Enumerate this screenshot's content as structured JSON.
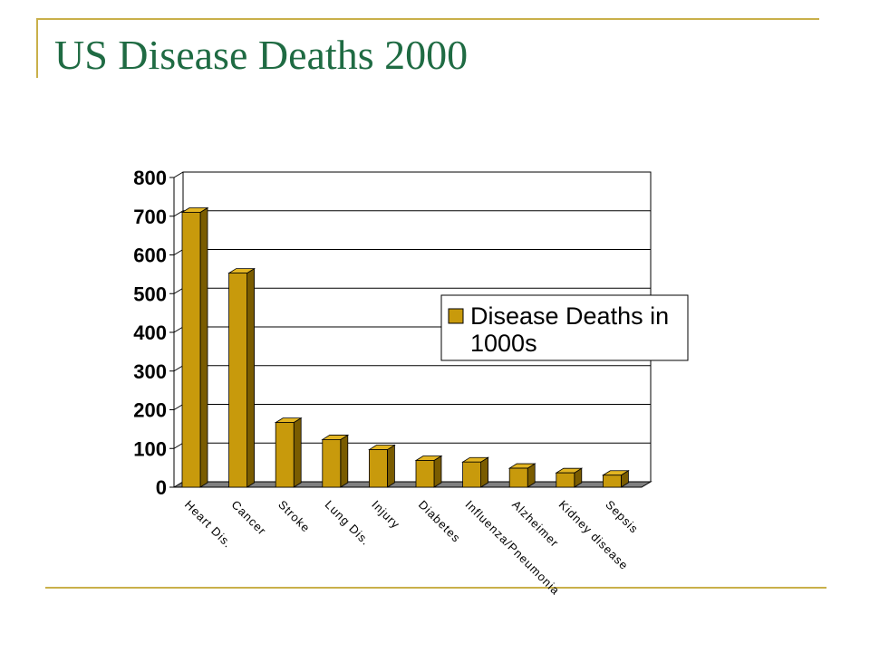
{
  "slide": {
    "title": "US Disease Deaths 2000"
  },
  "colors": {
    "bar_face": "#c89a0c",
    "bar_top": "#e3b522",
    "bar_side": "#7a5c00",
    "floor": "#808080",
    "rule": "#c9b04a",
    "title": "#1f6b43"
  },
  "chart_data": {
    "type": "bar",
    "title": "",
    "xlabel": "",
    "ylabel": "",
    "categories": [
      "Heart Dis.",
      "Cancer",
      "Stroke",
      "Lung Dis.",
      "Injury",
      "Diabetes",
      "Influenza/Pneumonia",
      "Alzheimer",
      "Kidney disease",
      "Sepsis"
    ],
    "series": [
      {
        "name": "Disease Deaths in 1000s",
        "values": [
          710,
          553,
          167,
          123,
          97,
          69,
          65,
          49,
          37,
          31
        ]
      }
    ],
    "ylim": [
      0,
      800
    ],
    "yticks": [
      0,
      100,
      200,
      300,
      400,
      500,
      600,
      700,
      800
    ],
    "grid": true,
    "legend": {
      "position": "right",
      "lines": [
        "Disease Deaths in",
        "1000s"
      ]
    }
  }
}
